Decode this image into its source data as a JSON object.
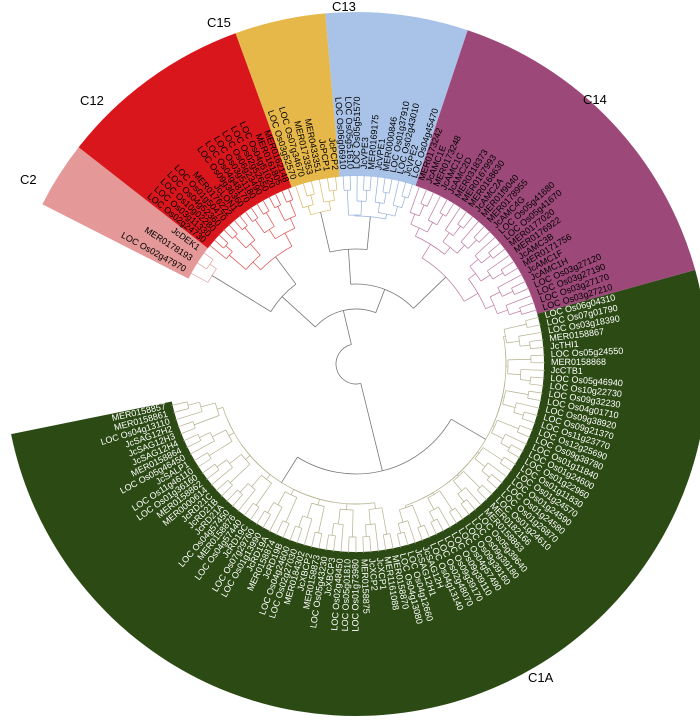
{
  "clades": [
    {
      "id": "C1A",
      "label": "C1A",
      "color": "#2c4a14",
      "branch_color": "#b3b08c",
      "leaves_right": [
        "LOC Os06g04310",
        "LOC Os07g01790",
        "LOC Os03g18390",
        "MER0158867",
        "JcTHI1",
        "LOC Os05g24550",
        "MER0158868",
        "JcCTB1",
        "LOC Os05g46940",
        "LOC Os10g22730",
        "LOC Os09g32230",
        "LOC Os04g01710",
        "LOC Os09g38920",
        "LOC Os09g21370",
        "LOC Os11g23770",
        "LOC Os12g25690",
        "LOC Os09g38780",
        "LOC Os01g11840",
        "LOC Os01g24600",
        "LOC Os01g22960",
        "LOC Os01g11830",
        "LOC Os01g24570",
        "LOC Os01g24590",
        "LOC Os01g24580",
        "LOC Os01g26870",
        "LOC Os01g24610",
        "MER0182166",
        "MER0158863",
        "LOC Os05g39640",
        "LOC Os09g39180",
        "LOC Os09g39160",
        "LOC Os04g57490",
        "LOC Os09g39110",
        "LOC Os09g39170",
        "LOC Os02g48070",
        "LOC Os04g13140",
        "JcSAG12H",
        "JcSAG12H1",
        "LOC Os04g12660",
        "LOC Os04g13080"
      ],
      "leaves_left": [
        "MER0158870",
        "MER1161088",
        "JcXCP1",
        "JcXCP2",
        "MER0158875",
        "LOC Os01g73980",
        "LOC Os05g01810",
        "LOC Os02g48450",
        "JcXBCP3",
        "LOC Os05g43230",
        "MER0158873",
        "JcXBCP2",
        "MER0184302",
        "LOC Os02g27030",
        "LOC Os04g24600",
        "JcRD19B",
        "MER0158874",
        "JcRD19A",
        "LOC Os01g13990",
        "LOC Os07g29760",
        "JcRD19C",
        "LOC Os04g57440",
        "MER0158876",
        "LOC Os04g57450",
        "JcRD21A",
        "JcRD21B",
        "JcRD21C",
        "MER0000614",
        "MER0158862",
        "LOC Os01g36160",
        "LOC Os11g46110",
        "JcSALP1",
        "LOC Os05g46450",
        "MER0158864",
        "JcSAG12H4",
        "JcSAG12H3",
        "JcSAG12H2",
        "LOC Os04g13110",
        "MER0158861",
        "MER0158857"
      ]
    },
    {
      "id": "C2",
      "label": "C2",
      "color": "#e59898",
      "branch_color": "#e2a0a0",
      "leaves": [
        "LOC Os02g47970",
        "MER0178193",
        "JcDEK1"
      ]
    },
    {
      "id": "C12",
      "label": "C12",
      "color": "#d8161c",
      "branch_color": "#e04848",
      "leaves": [
        "LOC Os02g24730",
        "LOC Os03g11330",
        "LOC Os10g02280",
        "LOC Os04g52360",
        "LOC Os01g50470",
        "MER0176222",
        "JcLON1",
        "LOC Os09g36360",
        "LOC Os04g48170",
        "LOC Os03g51180",
        "LOC Os06g23490",
        "LOC Os02g52650",
        "LOC Os04g51020",
        "MER0161805",
        "MER0162148"
      ]
    },
    {
      "id": "C15",
      "label": "C15",
      "color": "#e6b84a",
      "branch_color": "#d8b860",
      "leaves": [
        "LOC Os03g52570",
        "LOC Os07g34670",
        "MER0173353",
        "MER0433351",
        "JcPCP1",
        "JcPCP2"
      ]
    },
    {
      "id": "C13",
      "label": "C13",
      "color": "#a9c2e8",
      "branch_color": "#94acd8",
      "leaves": [
        "LOC Os06g06910",
        "LOC Os05g51610",
        "LOC Os05g51570",
        "JcVPE3",
        "MER0169175",
        "JcVPE1",
        "MER0000846",
        "LOC Os01g37910",
        "LOC Os02g43010",
        "JcVPE2",
        "LOC Os04g45470"
      ]
    },
    {
      "id": "C14",
      "label": "C14",
      "color": "#9c4879",
      "branch_color": "#bc78a0",
      "leaves": [
        "MER0173242",
        "JcAMC1E",
        "MER0173248",
        "JcAMC1C",
        "JcAMC2D",
        "MER0318373",
        "MER0167993",
        "MER0168630",
        "JcAMC2A",
        "MER01f9040",
        "MER0178955",
        "JcAMC4G",
        "LOC Os05g41680",
        "LOC Os05g41670",
        "MER0177020",
        "MER0176922",
        "JcAMC3B",
        "MER0171756",
        "JcAMC1F",
        "JcAMC1H",
        "LOC Os03g27120",
        "LOC Os03g27190",
        "LOC Os03g27170",
        "LOC Os03g27210"
      ]
    }
  ]
}
